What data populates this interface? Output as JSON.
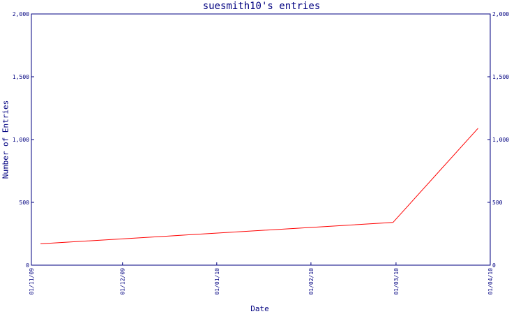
{
  "chart_data": {
    "type": "line",
    "title": "suesmith10's entries",
    "xlabel": "Date",
    "ylabel": "Number of Entries",
    "x_tick_labels": [
      "01/11/09",
      "01/12/09",
      "01/01/10",
      "01/02/10",
      "01/03/10",
      "01/04/10"
    ],
    "x_tick_dates": [
      "2009-11-01",
      "2009-12-01",
      "2010-01-01",
      "2010-02-01",
      "2010-03-01",
      "2010-04-01"
    ],
    "xlim": [
      "2009-11-01",
      "2010-04-01"
    ],
    "y_ticks": [
      0,
      500,
      1000,
      1500,
      2000
    ],
    "y_tick_labels": [
      "0",
      "500",
      "1,000",
      "1,500",
      "2,000"
    ],
    "ylim": [
      0,
      2000
    ],
    "y_axis_sides": [
      "left",
      "right"
    ],
    "grid": false,
    "line_color": "#ff0000",
    "axis_color": "#000080",
    "series": [
      {
        "x": [
          "2009-11-04",
          "2010-02-28",
          "2010-03-28"
        ],
        "y": [
          170,
          340,
          1090
        ]
      }
    ]
  }
}
